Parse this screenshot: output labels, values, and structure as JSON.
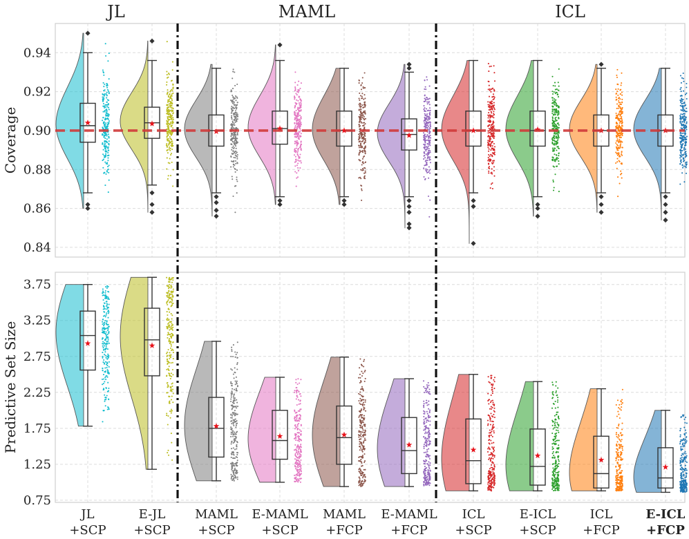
{
  "chart_data": [
    {
      "type": "raincloud",
      "panel": "top",
      "ylabel": "Coverage",
      "ylim": [
        0.835,
        0.955
      ],
      "yticks": [
        "0.84",
        "0.86",
        "0.88",
        "0.90",
        "0.92",
        "0.94"
      ],
      "reference_line": 0.9,
      "group_titles": [
        "JL",
        "MAML",
        "ICL"
      ],
      "categories": [
        {
          "label1": "JL",
          "label2": "+SCP",
          "color": "#17becf",
          "min": 0.86,
          "q1": 0.894,
          "median": 0.9025,
          "q3": 0.914,
          "max": 0.95,
          "wlo": 0.868,
          "whi": 0.94,
          "mean": 0.904,
          "outliers": [
            0.862,
            0.86,
            0.95
          ]
        },
        {
          "label1": "E-JL",
          "label2": "+SCP",
          "color": "#bcbd22",
          "min": 0.858,
          "q1": 0.896,
          "median": 0.904,
          "q3": 0.912,
          "max": 0.946,
          "wlo": 0.872,
          "whi": 0.936,
          "mean": 0.9035,
          "outliers": [
            0.868,
            0.862,
            0.858,
            0.946
          ]
        },
        {
          "label1": "MAML",
          "label2": "+SCP",
          "color": "#7f7f7f",
          "min": 0.856,
          "q1": 0.892,
          "median": 0.9,
          "q3": 0.908,
          "max": 0.934,
          "wlo": 0.868,
          "whi": 0.932,
          "mean": 0.8995,
          "outliers": [
            0.866,
            0.863,
            0.859,
            0.856
          ]
        },
        {
          "label1": "E-MAML",
          "label2": "+SCP",
          "color": "#e377c2",
          "min": 0.862,
          "q1": 0.893,
          "median": 0.901,
          "q3": 0.91,
          "max": 0.944,
          "wlo": 0.866,
          "whi": 0.936,
          "mean": 0.901,
          "outliers": [
            0.864,
            0.862,
            0.944
          ]
        },
        {
          "label1": "MAML",
          "label2": "+FCP",
          "color": "#8c564b",
          "min": 0.862,
          "q1": 0.892,
          "median": 0.9,
          "q3": 0.91,
          "max": 0.932,
          "wlo": 0.866,
          "whi": 0.932,
          "mean": 0.9,
          "outliers": [
            0.864,
            0.862
          ]
        },
        {
          "label1": "E-MAML",
          "label2": "+FCP",
          "color": "#9467bd",
          "min": 0.85,
          "q1": 0.89,
          "median": 0.898,
          "q3": 0.906,
          "max": 0.934,
          "wlo": 0.866,
          "whi": 0.93,
          "mean": 0.8975,
          "outliers": [
            0.864,
            0.861,
            0.858,
            0.852,
            0.85,
            0.932,
            0.934
          ]
        },
        {
          "label1": "ICL",
          "label2": "+SCP",
          "color": "#d62728",
          "min": 0.842,
          "q1": 0.892,
          "median": 0.9,
          "q3": 0.91,
          "max": 0.936,
          "wlo": 0.868,
          "whi": 0.936,
          "mean": 0.9,
          "outliers": [
            0.864,
            0.861,
            0.842
          ]
        },
        {
          "label1": "E-ICL",
          "label2": "+SCP",
          "color": "#2ca02c",
          "min": 0.856,
          "q1": 0.892,
          "median": 0.9,
          "q3": 0.91,
          "max": 0.936,
          "wlo": 0.866,
          "whi": 0.936,
          "mean": 0.9005,
          "outliers": [
            0.862,
            0.86,
            0.856
          ]
        },
        {
          "label1": "ICL",
          "label2": "+FCP",
          "color": "#ff7f0e",
          "min": 0.858,
          "q1": 0.892,
          "median": 0.9,
          "q3": 0.908,
          "max": 0.934,
          "wlo": 0.868,
          "whi": 0.932,
          "mean": 0.9,
          "outliers": [
            0.866,
            0.862,
            0.858,
            0.934
          ]
        },
        {
          "label1": "E-ICL",
          "label2": "+FCP",
          "color": "#1f77b4",
          "min": 0.854,
          "q1": 0.892,
          "median": 0.9,
          "q3": 0.908,
          "max": 0.932,
          "wlo": 0.868,
          "whi": 0.932,
          "mean": 0.9,
          "outliers": [
            0.866,
            0.862,
            0.858,
            0.854
          ]
        }
      ]
    },
    {
      "type": "raincloud",
      "panel": "bottom",
      "ylabel": "Predictive Set Size",
      "ylim": [
        0.72,
        3.92
      ],
      "yticks": [
        "0.75",
        "1.25",
        "1.75",
        "2.25",
        "2.75",
        "3.25",
        "3.75"
      ],
      "categories": [
        {
          "label1": "JL",
          "label2": "+SCP",
          "color": "#17becf",
          "min": 1.78,
          "q1": 2.56,
          "median": 3.04,
          "q3": 3.38,
          "max": 3.75,
          "wlo": 1.78,
          "whi": 3.75,
          "mean": 2.93,
          "outliers": []
        },
        {
          "label1": "E-JL",
          "label2": "+SCP",
          "color": "#bcbd22",
          "min": 1.18,
          "q1": 2.48,
          "median": 2.98,
          "q3": 3.42,
          "max": 3.85,
          "wlo": 1.18,
          "whi": 3.85,
          "mean": 2.9,
          "outliers": []
        },
        {
          "label1": "MAML",
          "label2": "+SCP",
          "color": "#7f7f7f",
          "min": 1.02,
          "q1": 1.35,
          "median": 1.75,
          "q3": 2.18,
          "max": 2.96,
          "wlo": 1.02,
          "whi": 2.96,
          "mean": 1.78,
          "outliers": []
        },
        {
          "label1": "E-MAML",
          "label2": "+SCP",
          "color": "#e377c2",
          "min": 1.0,
          "q1": 1.32,
          "median": 1.58,
          "q3": 2.0,
          "max": 2.46,
          "wlo": 1.0,
          "whi": 2.46,
          "mean": 1.64,
          "outliers": []
        },
        {
          "label1": "MAML",
          "label2": "+FCP",
          "color": "#8c564b",
          "min": 0.94,
          "q1": 1.25,
          "median": 1.62,
          "q3": 2.06,
          "max": 2.74,
          "wlo": 0.94,
          "whi": 2.74,
          "mean": 1.66,
          "outliers": []
        },
        {
          "label1": "E-MAML",
          "label2": "+FCP",
          "color": "#9467bd",
          "min": 0.94,
          "q1": 1.12,
          "median": 1.44,
          "q3": 1.9,
          "max": 2.44,
          "wlo": 0.94,
          "whi": 2.44,
          "mean": 1.52,
          "outliers": []
        },
        {
          "label1": "ICL",
          "label2": "+SCP",
          "color": "#d62728",
          "min": 0.88,
          "q1": 0.98,
          "median": 1.3,
          "q3": 1.88,
          "max": 2.5,
          "wlo": 0.88,
          "whi": 2.5,
          "mean": 1.45,
          "outliers": []
        },
        {
          "label1": "E-ICL",
          "label2": "+SCP",
          "color": "#2ca02c",
          "min": 0.88,
          "q1": 0.96,
          "median": 1.22,
          "q3": 1.74,
          "max": 2.4,
          "wlo": 0.88,
          "whi": 2.4,
          "mean": 1.37,
          "outliers": []
        },
        {
          "label1": "ICL",
          "label2": "+FCP",
          "color": "#ff7f0e",
          "min": 0.88,
          "q1": 0.92,
          "median": 1.12,
          "q3": 1.64,
          "max": 2.3,
          "wlo": 0.88,
          "whi": 2.3,
          "mean": 1.31,
          "outliers": []
        },
        {
          "label1": "E-ICL",
          "label2": "+FCP",
          "color": "#1f77b4",
          "min": 0.86,
          "q1": 0.92,
          "median": 1.06,
          "q3": 1.48,
          "max": 2.0,
          "wlo": 0.86,
          "whi": 2.0,
          "mean": 1.21,
          "outliers": []
        }
      ]
    }
  ],
  "highlight_last_label": true
}
